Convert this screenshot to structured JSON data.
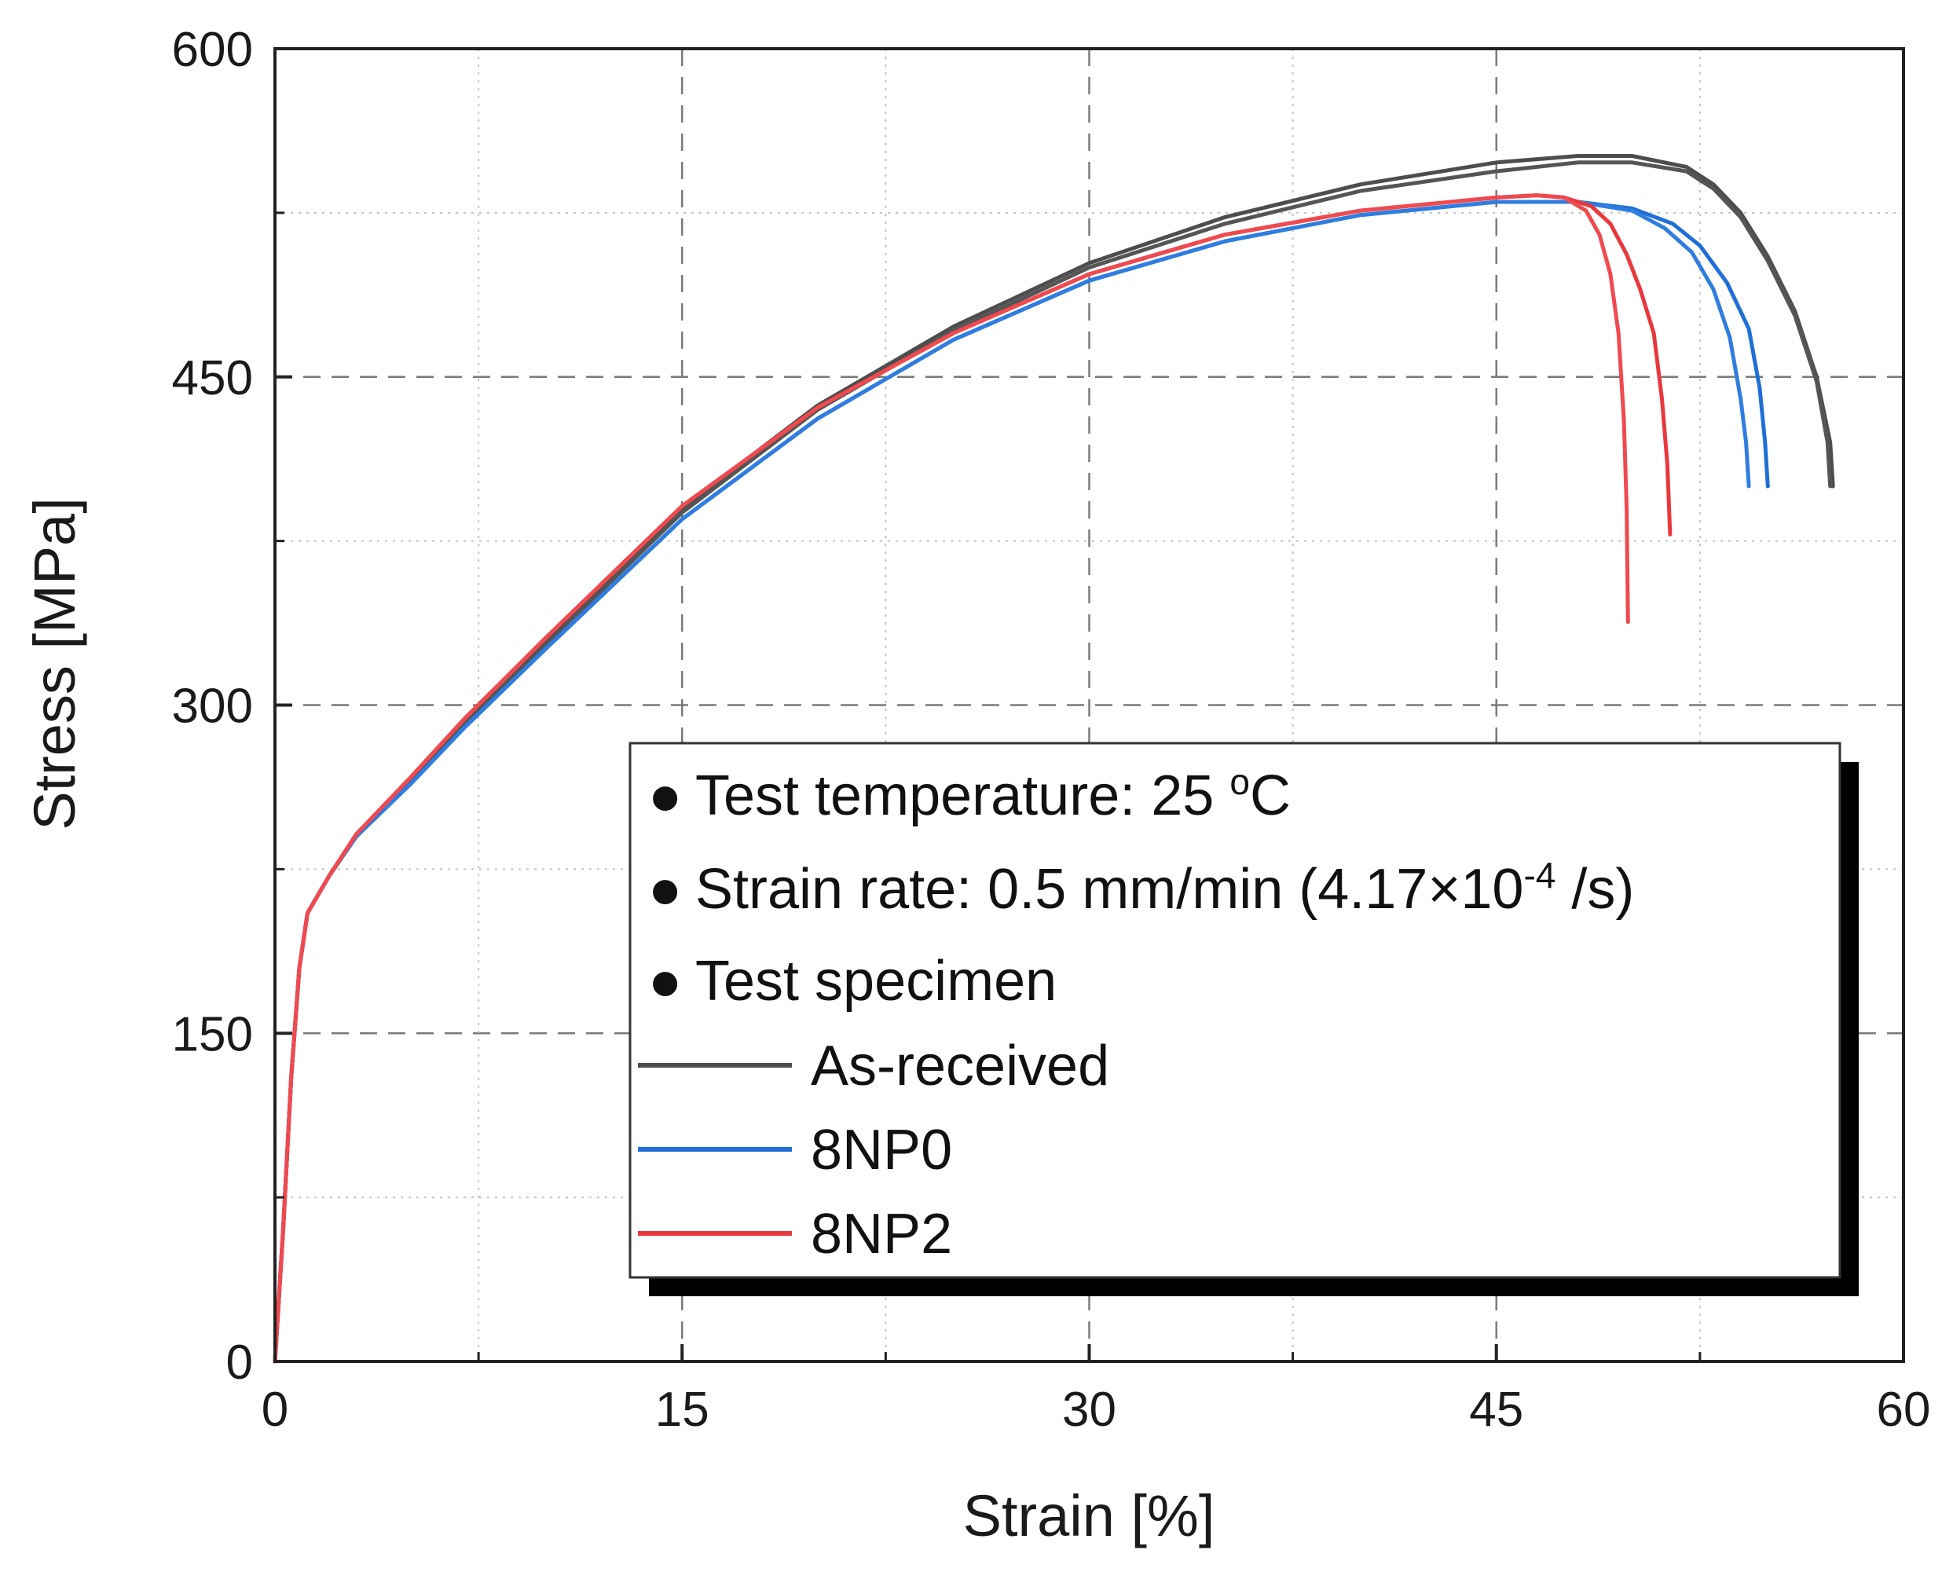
{
  "chart_data": {
    "type": "line",
    "xlabel": "Strain [%]",
    "ylabel": "Stress [MPa]",
    "xlim": [
      0,
      60
    ],
    "ylim": [
      0,
      600
    ],
    "xticks": [
      0,
      15,
      30,
      45,
      60
    ],
    "yticks": [
      0,
      150,
      300,
      450,
      600
    ],
    "xtick_labels": [
      "0",
      "15",
      "30",
      "45",
      "60"
    ],
    "ytick_labels": [
      "0",
      "150",
      "300",
      "450",
      "600"
    ],
    "minor_xticks": [
      7.5,
      22.5,
      37.5,
      52.5
    ],
    "minor_yticks": [
      75,
      225,
      375,
      525
    ],
    "grid": true,
    "legend": {
      "position": "bottom-right",
      "notes": [
        {
          "bullet": "●",
          "text": "Test temperature: 25 ",
          "sup": "o",
          "tail": "C"
        },
        {
          "bullet": "●",
          "text": "Strain rate: 0.5 mm/min (4.17×10",
          "sup": "-4",
          "tail": " /s)"
        },
        {
          "bullet": "●",
          "text": "Test specimen",
          "sup": "",
          "tail": ""
        }
      ],
      "entries": [
        "As-received",
        "8NP0",
        "8NP2"
      ]
    },
    "series": [
      {
        "name": "As-received",
        "color": "#4d4d4d",
        "points": [
          [
            0,
            0
          ],
          [
            0.3,
            60
          ],
          [
            0.6,
            130
          ],
          [
            0.9,
            180
          ],
          [
            1.2,
            205
          ],
          [
            2,
            222
          ],
          [
            3,
            240
          ],
          [
            5,
            265
          ],
          [
            7,
            293
          ],
          [
            10,
            330
          ],
          [
            15,
            390
          ],
          [
            20,
            437
          ],
          [
            25,
            473
          ],
          [
            30,
            502
          ],
          [
            35,
            523
          ],
          [
            40,
            538
          ],
          [
            45,
            548
          ],
          [
            48,
            551
          ],
          [
            50,
            551
          ],
          [
            52,
            546
          ],
          [
            53,
            538
          ],
          [
            54,
            525
          ],
          [
            55,
            505
          ],
          [
            56,
            480
          ],
          [
            56.8,
            450
          ],
          [
            57.3,
            420
          ],
          [
            57.4,
            400
          ]
        ]
      },
      {
        "name": "As-received",
        "color": "#555555",
        "points": [
          [
            0,
            0
          ],
          [
            0.3,
            60
          ],
          [
            0.6,
            130
          ],
          [
            0.9,
            180
          ],
          [
            1.2,
            205
          ],
          [
            2,
            222
          ],
          [
            3,
            240
          ],
          [
            5,
            265
          ],
          [
            7,
            292
          ],
          [
            10,
            328
          ],
          [
            15,
            388
          ],
          [
            20,
            435
          ],
          [
            25,
            471
          ],
          [
            30,
            500
          ],
          [
            35,
            520
          ],
          [
            40,
            535
          ],
          [
            45,
            544
          ],
          [
            48,
            548
          ],
          [
            50,
            548
          ],
          [
            52,
            544
          ],
          [
            53,
            536
          ],
          [
            54,
            523
          ],
          [
            55,
            503
          ],
          [
            56,
            478
          ],
          [
            56.8,
            448
          ],
          [
            57.2,
            420
          ],
          [
            57.3,
            400
          ]
        ]
      },
      {
        "name": "8NP0",
        "color": "#1f6fd6",
        "points": [
          [
            0,
            0
          ],
          [
            0.3,
            60
          ],
          [
            0.6,
            130
          ],
          [
            0.9,
            180
          ],
          [
            1.2,
            205
          ],
          [
            2,
            222
          ],
          [
            3,
            240
          ],
          [
            5,
            264
          ],
          [
            7,
            290
          ],
          [
            10,
            326
          ],
          [
            15,
            385
          ],
          [
            20,
            431
          ],
          [
            25,
            467
          ],
          [
            30,
            494
          ],
          [
            35,
            512
          ],
          [
            40,
            524
          ],
          [
            45,
            530
          ],
          [
            48,
            530
          ],
          [
            50,
            527
          ],
          [
            51.5,
            520
          ],
          [
            52.5,
            510
          ],
          [
            53.5,
            493
          ],
          [
            54.3,
            472
          ],
          [
            54.7,
            445
          ],
          [
            54.9,
            420
          ],
          [
            55,
            400
          ]
        ]
      },
      {
        "name": "8NP0",
        "color": "#2f7de0",
        "points": [
          [
            0,
            0
          ],
          [
            0.3,
            60
          ],
          [
            0.6,
            130
          ],
          [
            0.9,
            180
          ],
          [
            1.2,
            205
          ],
          [
            2,
            222
          ],
          [
            3,
            240
          ],
          [
            5,
            264
          ],
          [
            7,
            290
          ],
          [
            10,
            326
          ],
          [
            15,
            385
          ],
          [
            20,
            431
          ],
          [
            25,
            467
          ],
          [
            30,
            494
          ],
          [
            35,
            512
          ],
          [
            40,
            524
          ],
          [
            45,
            530
          ],
          [
            48,
            530
          ],
          [
            50,
            526
          ],
          [
            51.2,
            518
          ],
          [
            52.2,
            507
          ],
          [
            53,
            490
          ],
          [
            53.6,
            468
          ],
          [
            54,
            440
          ],
          [
            54.2,
            420
          ],
          [
            54.3,
            400
          ]
        ]
      },
      {
        "name": "8NP2",
        "color": "#e8383d",
        "points": [
          [
            0,
            0
          ],
          [
            0.3,
            60
          ],
          [
            0.6,
            130
          ],
          [
            0.9,
            180
          ],
          [
            1.2,
            205
          ],
          [
            2,
            222
          ],
          [
            3,
            241
          ],
          [
            5,
            267
          ],
          [
            7,
            294
          ],
          [
            10,
            331
          ],
          [
            15,
            391
          ],
          [
            20,
            436
          ],
          [
            25,
            470
          ],
          [
            30,
            497
          ],
          [
            35,
            515
          ],
          [
            40,
            526
          ],
          [
            45,
            532
          ],
          [
            46.5,
            533
          ],
          [
            47.5,
            532
          ],
          [
            48.5,
            528
          ],
          [
            49.2,
            520
          ],
          [
            49.8,
            506
          ],
          [
            50.3,
            490
          ],
          [
            50.8,
            470
          ],
          [
            51.1,
            440
          ],
          [
            51.3,
            410
          ],
          [
            51.4,
            378
          ]
        ]
      },
      {
        "name": "8NP2",
        "color": "#ef4a4f",
        "points": [
          [
            0,
            0
          ],
          [
            0.3,
            60
          ],
          [
            0.6,
            130
          ],
          [
            0.9,
            180
          ],
          [
            1.2,
            205
          ],
          [
            2,
            222
          ],
          [
            3,
            241
          ],
          [
            5,
            267
          ],
          [
            7,
            294
          ],
          [
            10,
            331
          ],
          [
            15,
            391
          ],
          [
            20,
            436
          ],
          [
            25,
            470
          ],
          [
            30,
            497
          ],
          [
            35,
            515
          ],
          [
            40,
            526
          ],
          [
            45,
            532
          ],
          [
            46.5,
            533
          ],
          [
            47.5,
            532
          ],
          [
            48.3,
            526
          ],
          [
            48.8,
            515
          ],
          [
            49.2,
            497
          ],
          [
            49.5,
            470
          ],
          [
            49.7,
            430
          ],
          [
            49.8,
            390
          ],
          [
            49.85,
            338
          ]
        ]
      }
    ]
  }
}
